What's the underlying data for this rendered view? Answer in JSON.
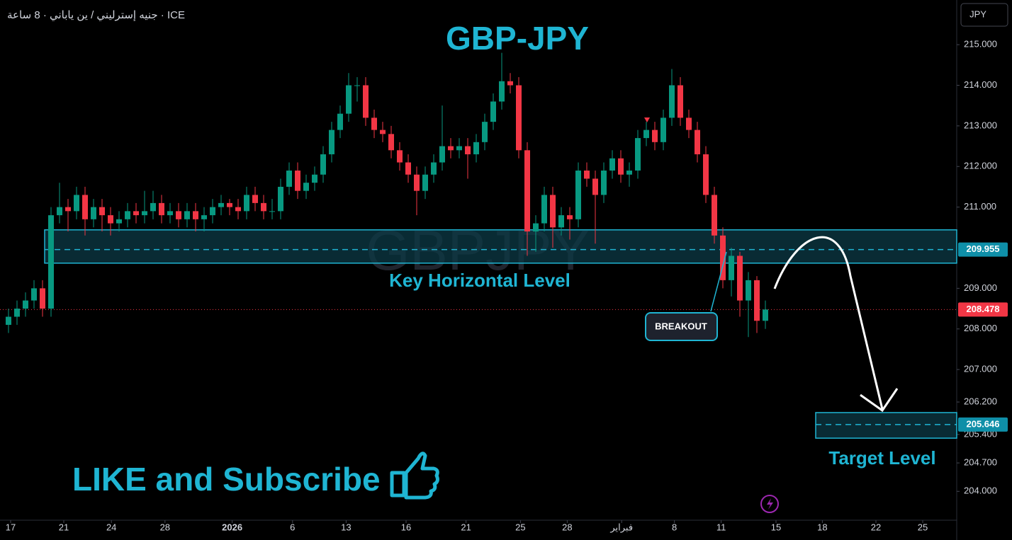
{
  "header": "جنيه إسترليني / ين ياباني · 8 ساعة · ICE",
  "currency": "JPY",
  "chart_data": {
    "type": "candlestick",
    "title": "GBP-JPY",
    "watermark": "GBPJPY",
    "up_color": "#089981",
    "down_color": "#f23645",
    "open": [
      208.1,
      208.3,
      208.5,
      208.7,
      209.0,
      208.5,
      210.8,
      211.0,
      210.9,
      211.3,
      210.7,
      211.0,
      210.8,
      210.6,
      210.7,
      210.9,
      210.8,
      210.9,
      211.1,
      210.8,
      210.9,
      210.7,
      210.9,
      210.7,
      210.8,
      211.0,
      211.1,
      211.0,
      210.9,
      211.3,
      211.1,
      210.9,
      210.9,
      211.5,
      211.9,
      211.4,
      211.6,
      211.8,
      212.3,
      212.9,
      213.3,
      214.0,
      214.0,
      213.2,
      212.9,
      212.8,
      212.4,
      212.1,
      211.8,
      211.4,
      211.8,
      212.1,
      212.5,
      212.4,
      212.5,
      212.3,
      212.6,
      213.1,
      213.6,
      214.1,
      214.0,
      212.4,
      210.4,
      210.6,
      211.3,
      210.5,
      210.8,
      210.7,
      211.9,
      211.7,
      211.3,
      211.9,
      212.2,
      211.8,
      211.9,
      212.7,
      212.9,
      212.6,
      213.2,
      214.0,
      213.2,
      212.9,
      212.3,
      211.3,
      210.3,
      209.2,
      209.8,
      208.7,
      209.2,
      208.2
    ],
    "high": [
      208.5,
      208.7,
      208.9,
      209.2,
      209.2,
      211.0,
      211.6,
      211.2,
      211.5,
      211.5,
      211.2,
      211.2,
      211.0,
      210.9,
      211.1,
      211.1,
      211.4,
      211.4,
      211.3,
      211.1,
      211.1,
      211.1,
      211.1,
      211.0,
      211.2,
      211.3,
      211.2,
      211.2,
      211.5,
      211.5,
      211.3,
      211.2,
      211.7,
      212.1,
      212.1,
      211.8,
      212.0,
      212.5,
      213.1,
      213.5,
      214.3,
      214.2,
      214.2,
      213.4,
      213.1,
      213.0,
      212.6,
      212.3,
      212.0,
      212.0,
      212.3,
      213.5,
      212.7,
      212.7,
      212.7,
      212.8,
      213.3,
      213.8,
      214.8,
      214.3,
      214.2,
      212.6,
      210.8,
      211.5,
      211.5,
      211.0,
      211.0,
      212.1,
      212.1,
      211.9,
      212.1,
      212.4,
      212.4,
      212.1,
      212.9,
      213.1,
      213.1,
      213.4,
      214.4,
      214.2,
      213.4,
      213.1,
      212.5,
      211.5,
      210.5,
      210.0,
      209.9,
      209.4,
      209.3,
      208.7
    ],
    "low": [
      207.9,
      208.1,
      208.3,
      208.5,
      208.3,
      208.3,
      210.6,
      210.4,
      210.7,
      210.3,
      210.5,
      210.4,
      210.3,
      210.4,
      210.5,
      210.6,
      210.6,
      210.7,
      210.6,
      210.6,
      210.5,
      210.5,
      210.4,
      210.4,
      210.6,
      210.8,
      210.8,
      210.7,
      210.7,
      210.9,
      210.7,
      210.7,
      210.7,
      211.3,
      211.2,
      211.2,
      211.4,
      211.6,
      212.1,
      212.7,
      213.1,
      213.6,
      213.0,
      212.7,
      212.6,
      212.2,
      211.9,
      211.6,
      210.8,
      211.2,
      211.6,
      211.9,
      212.2,
      212.2,
      211.7,
      212.1,
      212.4,
      212.9,
      213.4,
      213.8,
      212.2,
      209.8,
      209.9,
      210.4,
      210.0,
      210.3,
      210.2,
      210.5,
      211.5,
      210.1,
      211.1,
      211.7,
      211.6,
      211.5,
      211.7,
      212.5,
      212.4,
      212.4,
      213.0,
      213.0,
      212.7,
      212.1,
      211.1,
      210.1,
      209.0,
      208.8,
      208.3,
      207.8,
      207.9,
      208.0
    ],
    "close": [
      208.3,
      208.5,
      208.7,
      209.0,
      208.5,
      210.8,
      211.0,
      210.9,
      211.3,
      210.7,
      211.0,
      210.8,
      210.6,
      210.7,
      210.9,
      210.8,
      210.9,
      211.1,
      210.8,
      210.9,
      210.7,
      210.9,
      210.7,
      210.8,
      211.0,
      211.1,
      211.0,
      210.9,
      211.3,
      211.1,
      210.9,
      210.9,
      211.5,
      211.9,
      211.4,
      211.6,
      211.8,
      212.3,
      212.9,
      213.3,
      214.0,
      214.0,
      213.2,
      212.9,
      212.8,
      212.4,
      212.1,
      211.8,
      211.4,
      211.8,
      212.1,
      212.5,
      212.4,
      212.5,
      212.3,
      212.6,
      213.1,
      213.6,
      214.1,
      214.0,
      212.4,
      210.4,
      210.6,
      211.3,
      210.5,
      210.8,
      210.7,
      211.9,
      211.7,
      211.3,
      211.9,
      212.2,
      211.8,
      211.9,
      212.7,
      212.9,
      212.6,
      213.2,
      214.0,
      213.2,
      212.9,
      212.3,
      211.3,
      210.3,
      209.2,
      209.8,
      208.7,
      209.2,
      208.2,
      208.478
    ],
    "xlim": [
      -1,
      111.5
    ],
    "xticks": [
      {
        "value": 0.25,
        "label": "17"
      },
      {
        "value": 6.5,
        "label": "21"
      },
      {
        "value": 12.1,
        "label": "24"
      },
      {
        "value": 18.4,
        "label": "28"
      },
      {
        "value": 26.3,
        "label": "2026"
      },
      {
        "value": 33.4,
        "label": "6"
      },
      {
        "value": 39.7,
        "label": "13"
      },
      {
        "value": 46.75,
        "label": "16"
      },
      {
        "value": 53.8,
        "label": "21"
      },
      {
        "value": 60.2,
        "label": "25"
      },
      {
        "value": 65.7,
        "label": "28"
      },
      {
        "value": 72.1,
        "label": "فبراير"
      },
      {
        "value": 78.3,
        "label": "8"
      },
      {
        "value": 83.8,
        "label": "11"
      },
      {
        "value": 90.25,
        "label": "15"
      },
      {
        "value": 95.7,
        "label": "18"
      },
      {
        "value": 102,
        "label": "22"
      },
      {
        "value": 107.5,
        "label": "25"
      }
    ],
    "ylim": [
      203.29,
      216.1
    ],
    "yticks": [
      {
        "value": 215,
        "label": "215.000"
      },
      {
        "value": 214,
        "label": "214.000"
      },
      {
        "value": 213,
        "label": "213.000"
      },
      {
        "value": 212,
        "label": "212.000"
      },
      {
        "value": 211,
        "label": "211.000"
      },
      {
        "value": 209,
        "label": "209.000"
      },
      {
        "value": 208,
        "label": "208.000"
      },
      {
        "value": 207,
        "label": "207.000"
      },
      {
        "value": 206.2,
        "label": "206.200"
      },
      {
        "value": 205.4,
        "label": "205.400"
      },
      {
        "value": 204.7,
        "label": "204.700"
      },
      {
        "value": 204,
        "label": "204.000"
      }
    ],
    "last_price": 208.478,
    "key_level": {
      "label": "Key Horizontal Level",
      "low": 209.62,
      "high": 210.44,
      "level": 209.955
    },
    "target_level": {
      "label": "Target Level",
      "low": 205.31,
      "high": 205.94,
      "level": 205.646
    },
    "breakout_label": "BREAKOUT",
    "cta": "LIKE and Subscribe"
  }
}
